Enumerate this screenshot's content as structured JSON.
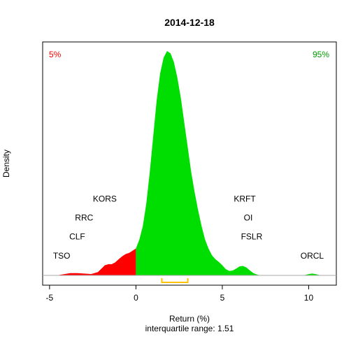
{
  "chart_data": {
    "type": "area",
    "title": "2014-12-18",
    "xlabel": "Return (%)",
    "ylabel": "Density",
    "subtitle": "interquartile range: 1.51",
    "xlim": [
      -5.4,
      11.6
    ],
    "ylim": [
      0,
      1.0
    ],
    "xticks": [
      -5,
      0,
      5,
      10
    ],
    "xtick_labels": [
      "-5",
      "0",
      "5",
      "10"
    ],
    "corner_labels": {
      "left": {
        "text": "5%",
        "color": "#ff0000"
      },
      "right": {
        "text": "95%",
        "color": "#009900"
      }
    },
    "colors": {
      "lower_tail": "#ff0000",
      "body": "#00dd00",
      "baseline": "#aaaaaa",
      "iqr": "#ffc000"
    },
    "lower_cutoff": 0,
    "iqr_range": [
      1.5,
      3.0
    ],
    "density": {
      "x": [
        -4.6,
        -4.2,
        -3.8,
        -3.4,
        -3.0,
        -2.6,
        -2.2,
        -2.0,
        -1.8,
        -1.6,
        -1.4,
        -1.2,
        -1.0,
        -0.8,
        -0.6,
        -0.4,
        -0.2,
        0.0,
        0.2,
        0.4,
        0.6,
        0.8,
        1.0,
        1.2,
        1.4,
        1.6,
        1.8,
        2.0,
        2.2,
        2.4,
        2.6,
        2.8,
        3.0,
        3.2,
        3.4,
        3.6,
        3.8,
        4.0,
        4.2,
        4.4,
        4.6,
        4.8,
        5.0,
        5.2,
        5.4,
        5.6,
        5.8,
        6.0,
        6.2,
        6.4,
        6.6,
        6.8,
        7.0,
        7.2,
        7.5,
        8.0,
        8.5,
        9.0,
        9.5,
        9.8,
        10.0,
        10.2,
        10.4,
        10.6,
        10.8
      ],
      "y": [
        0.0,
        0.005,
        0.01,
        0.01,
        0.008,
        0.006,
        0.015,
        0.03,
        0.045,
        0.05,
        0.05,
        0.058,
        0.072,
        0.085,
        0.095,
        0.1,
        0.11,
        0.12,
        0.16,
        0.22,
        0.32,
        0.46,
        0.62,
        0.78,
        0.9,
        0.97,
        1.0,
        0.99,
        0.95,
        0.88,
        0.79,
        0.68,
        0.57,
        0.46,
        0.37,
        0.29,
        0.22,
        0.16,
        0.12,
        0.09,
        0.072,
        0.06,
        0.045,
        0.028,
        0.02,
        0.022,
        0.03,
        0.04,
        0.042,
        0.035,
        0.022,
        0.01,
        0.004,
        0.0,
        0.0,
        0.0,
        0.0,
        0.0,
        0.0,
        0.002,
        0.006,
        0.008,
        0.006,
        0.002,
        0.0
      ]
    },
    "annotations": [
      {
        "text": "TSO",
        "x": -4.3,
        "y": 0.075
      },
      {
        "text": "CLF",
        "x": -3.4,
        "y": 0.16
      },
      {
        "text": "RRC",
        "x": -3.0,
        "y": 0.245
      },
      {
        "text": "KORS",
        "x": -1.8,
        "y": 0.328
      },
      {
        "text": "KRFT",
        "x": 6.3,
        "y": 0.328
      },
      {
        "text": "OI",
        "x": 6.5,
        "y": 0.245
      },
      {
        "text": "FSLR",
        "x": 6.7,
        "y": 0.16
      },
      {
        "text": "ORCL",
        "x": 10.2,
        "y": 0.075
      }
    ]
  }
}
